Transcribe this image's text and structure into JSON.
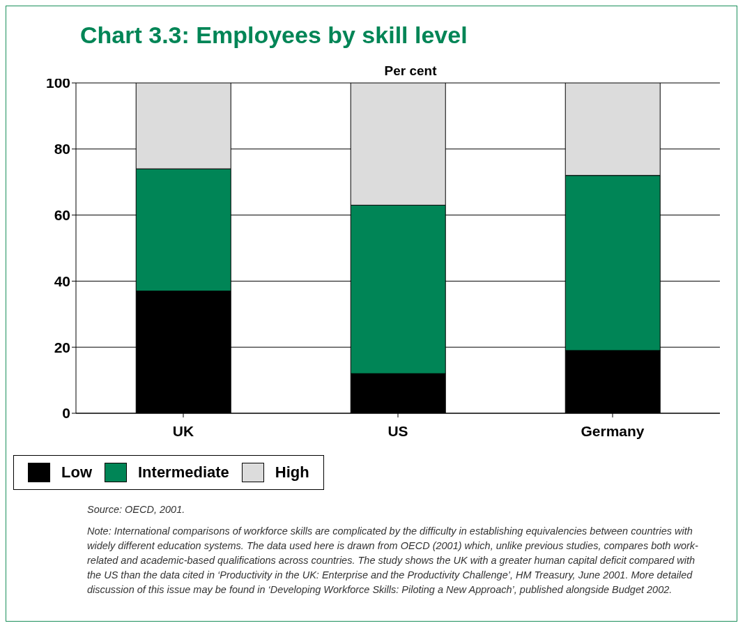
{
  "chart_data": {
    "type": "bar",
    "title": "Chart 3.3: Employees by skill level",
    "ylabel": "Per cent",
    "categories": [
      "UK",
      "US",
      "Germany"
    ],
    "series": [
      {
        "name": "Low",
        "color": "#000000",
        "values": [
          37,
          12,
          19
        ]
      },
      {
        "name": "Intermediate",
        "color": "#008556",
        "values": [
          37,
          51,
          53
        ]
      },
      {
        "name": "High",
        "color": "#dcdcdc",
        "values": [
          26,
          37,
          28
        ]
      }
    ],
    "stacked": true,
    "ylim": [
      0,
      100
    ],
    "yticks": [
      0,
      20,
      40,
      60,
      80,
      100
    ],
    "grid": "y",
    "legend": "bottom",
    "annotations": [
      "Source: OECD, 2001.",
      "Note: International comparisons of workforce skills are complicated by the difficulty in establishing equivalencies between countries with widely different education systems. The data used here is drawn from OECD (2001) which, unlike previous studies, compares both work-related and academic-based qualifications across countries. The study shows the UK with a greater human capital deficit compared with the US than the data cited in ‘Productivity in the UK: Enterprise and the Productivity Challenge’, HM Treasury, June 2001. More detailed discussion of this issue may be found in ‘Developing Workforce Skills: Piloting a New Approach’, published alongside Budget 2002."
    ]
  }
}
